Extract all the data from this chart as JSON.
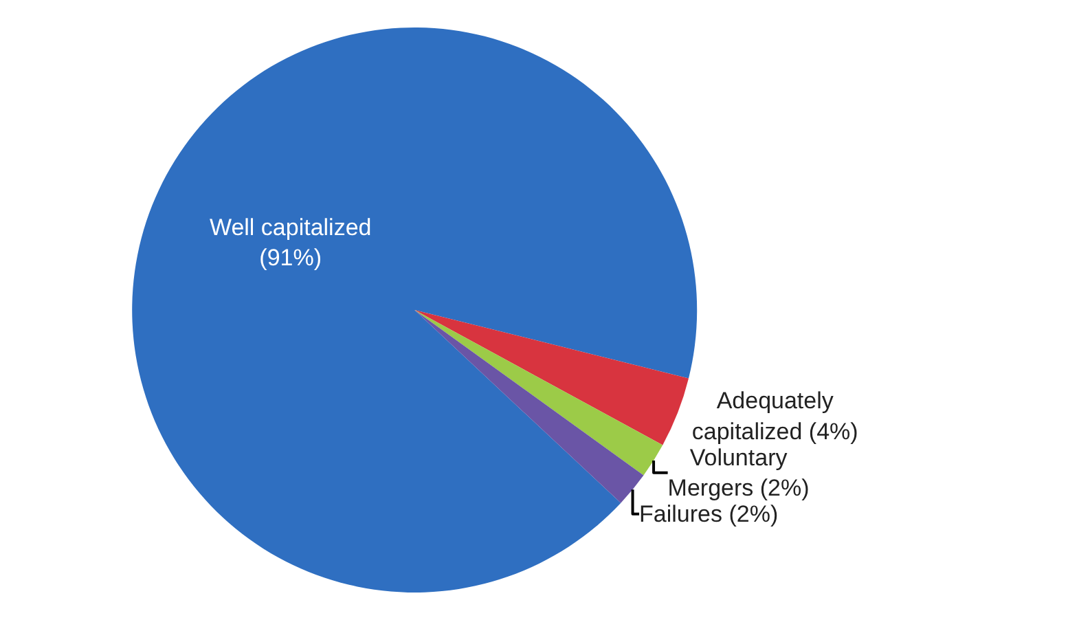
{
  "chart_data": {
    "type": "pie",
    "categories": [
      "Well capitalized",
      "Adequately capitalized",
      "Voluntary Mergers",
      "Failures"
    ],
    "values": [
      91,
      4,
      2,
      2
    ],
    "value_labels": [
      "(91%)",
      "(4%)",
      "(2%)",
      "(2%)"
    ],
    "colors": [
      "#2f6fc1",
      "#d8343f",
      "#9ccb48",
      "#6a55a6"
    ],
    "legend": false
  }
}
